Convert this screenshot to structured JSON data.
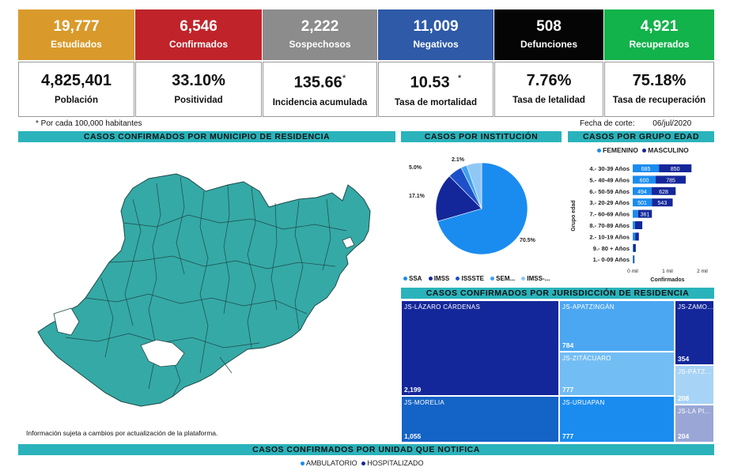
{
  "kpis": [
    {
      "value": "19,777",
      "label": "Estudiados",
      "color": "#d99a2b"
    },
    {
      "value": "6,546",
      "label": "Confirmados",
      "color": "#c0242a"
    },
    {
      "value": "2,222",
      "label": "Sospechosos",
      "color": "#8c8c8c"
    },
    {
      "value": "11,009",
      "label": "Negativos",
      "color": "#2e5aa8"
    },
    {
      "value": "508",
      "label": "Defunciones",
      "color": "#050505"
    },
    {
      "value": "4,921",
      "label": "Recuperados",
      "color": "#12b34a"
    }
  ],
  "stats": [
    {
      "value": "4,825,401",
      "label": "Población"
    },
    {
      "value": "33.10%",
      "label": "Positividad"
    },
    {
      "value": "135.66",
      "mark": "*",
      "label": "Incidencia acumulada"
    },
    {
      "value": "10.53",
      "mark": "*",
      "label": "Tasa de mortalidad"
    },
    {
      "value": "7.76%",
      "label": "Tasa de letalidad"
    },
    {
      "value": "75.18%",
      "label": "Tasa de recuperación"
    }
  ],
  "footnote": "* Por cada 100,000 habitantes",
  "cutoff": {
    "label": "Fecha de corte:",
    "date": "06/jul/2020"
  },
  "sections": {
    "municipio": "CASOS CONFIRMADOS POR MUNICIPIO DE RESIDENCIA",
    "institucion": "CASOS POR INSTITUCIÓN",
    "edad": "CASOS POR GRUPO EDAD",
    "jurisdiccion": "CASOS CONFIRMADOS POR JURISDICCIÓN DE RESIDENCIA",
    "unidad": "CASOS CONFIRMADOS POR UNIDAD QUE NOTIFICA"
  },
  "map_note": "Información sujeta a cambios por actualización de la plataforma.",
  "map_color": "#35a9a6",
  "chart_data": [
    {
      "type": "pie",
      "title": "CASOS POR INSTITUCIÓN",
      "slices": [
        {
          "label": "SSA",
          "value": 70.5,
          "text": "70.5%",
          "color": "#1a8cf0"
        },
        {
          "label": "IMSS",
          "value": 17.1,
          "text": "17.1%",
          "color": "#14279a"
        },
        {
          "label": "ISSSTE",
          "value": 5.0,
          "text": "5.0%",
          "color": "#1d50c8"
        },
        {
          "label": "SEM...",
          "value": 2.1,
          "text": "2.1%",
          "color": "#3fa0f0"
        },
        {
          "label": "IMSS-...",
          "value": 5.3,
          "text": "",
          "color": "#8fc8f5"
        }
      ],
      "legend": [
        "SSA",
        "IMSS",
        "ISSSTE",
        "SEM...",
        "IMSS-..."
      ]
    },
    {
      "type": "bar",
      "title": "CASOS POR GRUPO EDAD",
      "legend": [
        {
          "name": "FEMENINO",
          "color": "#1a8cf0"
        },
        {
          "name": "MASCULINO",
          "color": "#14279a"
        }
      ],
      "categories": [
        "4.- 30-39 Años",
        "5.- 40-49 Años",
        "6.- 50-59 Años",
        "3.- 20-29 Años",
        "7.- 60-69 Años",
        "8.- 70-89 Años",
        "2.- 10-19 Años",
        "9.- 80 + Años",
        "1.- 0-09 Años"
      ],
      "series": [
        {
          "name": "FEMENINO",
          "values": [
            685,
            600,
            494,
            501,
            140,
            60,
            65,
            20,
            25
          ],
          "labels": [
            "685",
            "600",
            "494",
            "501",
            "",
            "",
            "",
            "",
            ""
          ]
        },
        {
          "name": "MASCULINO",
          "values": [
            850,
            785,
            628,
            543,
            361,
            190,
            95,
            60,
            20
          ],
          "labels": [
            "850",
            "785",
            "628",
            "543",
            "361",
            "",
            "",
            "",
            ""
          ]
        }
      ],
      "xticks": [
        "0 mil",
        "1 mil",
        "2 mil"
      ],
      "xlim": [
        0,
        2000
      ],
      "xlabel": "Confirmados",
      "ylabel": "Grupo edad"
    },
    {
      "type": "treemap",
      "title": "CASOS CONFIRMADOS POR JURISDICCIÓN DE RESIDENCIA",
      "items": [
        {
          "name": "JS-LÁZARO CÁRDENAS",
          "value": 2199,
          "text": "2,199",
          "color": "#14279a"
        },
        {
          "name": "JS-MORELIA",
          "value": 1055,
          "text": "1,055",
          "color": "#1463c6"
        },
        {
          "name": "JS-APATZINGÁN",
          "value": 784,
          "text": "784",
          "color": "#4ba7f2"
        },
        {
          "name": "JS-ZITÁCUARO",
          "value": 777,
          "text": "777",
          "color": "#73bdf5"
        },
        {
          "name": "JS-URUAPAN",
          "value": 777,
          "text": "777",
          "color": "#1a8cf0"
        },
        {
          "name": "JS-ZAMO...",
          "value": 354,
          "text": "354",
          "color": "#14279a"
        },
        {
          "name": "JS-PÁTZ...",
          "value": 208,
          "text": "208",
          "color": "#a7d4f6"
        },
        {
          "name": "JS-LA PI...",
          "value": 204,
          "text": "204",
          "color": "#9aa6d6"
        }
      ]
    }
  ],
  "unidad_legend": [
    {
      "name": "AMBULATORIO",
      "color": "#1a8cf0"
    },
    {
      "name": "HOSPITALIZADO",
      "color": "#14279a"
    }
  ]
}
